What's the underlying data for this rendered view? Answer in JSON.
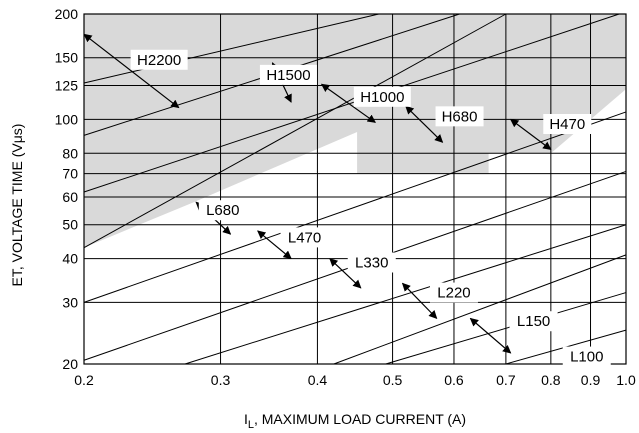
{
  "chart_data": {
    "type": "line",
    "x_scale": "log",
    "y_scale": "log",
    "xlim": [
      0.2,
      1.0
    ],
    "ylim": [
      20,
      200
    ],
    "xlabel_main": "I",
    "xlabel_sub": "L",
    "xlabel_rest": ", MAXIMUM LOAD CURRENT (A)",
    "ylabel": "ET, VOLTAGE TIME (Vμs)",
    "x_ticks": [
      {
        "value": 0.2,
        "label": "0.2"
      },
      {
        "value": 0.3,
        "label": "0.3"
      },
      {
        "value": 0.4,
        "label": "0.4"
      },
      {
        "value": 0.5,
        "label": "0.5"
      },
      {
        "value": 0.6,
        "label": "0.6"
      },
      {
        "value": 0.7,
        "label": "0.7"
      },
      {
        "value": 0.8,
        "label": "0.8"
      },
      {
        "value": 0.9,
        "label": "0.9"
      },
      {
        "value": 1.0,
        "label": "1.0"
      }
    ],
    "y_ticks": [
      {
        "value": 20,
        "label": "20"
      },
      {
        "value": 30,
        "label": "30"
      },
      {
        "value": 40,
        "label": "40"
      },
      {
        "value": 50,
        "label": "50"
      },
      {
        "value": 60,
        "label": "60"
      },
      {
        "value": 70,
        "label": "70"
      },
      {
        "value": 80,
        "label": "80"
      },
      {
        "value": 100,
        "label": "100"
      },
      {
        "value": 125,
        "label": "125"
      },
      {
        "value": 150,
        "label": "150"
      },
      {
        "value": 200,
        "label": "200"
      }
    ],
    "shaded_color": "#d9d9d9",
    "shaded_region": [
      [
        0.2,
        200
      ],
      [
        1.0,
        200
      ],
      [
        1.0,
        122
      ],
      [
        0.8,
        80
      ],
      [
        0.665,
        80
      ],
      [
        0.665,
        70
      ],
      [
        0.45,
        70
      ],
      [
        0.45,
        92
      ],
      [
        0.277,
        58
      ],
      [
        0.2,
        43
      ]
    ],
    "boundary_lines": [
      {
        "x": [
          0.2,
          0.7
        ],
        "y": [
          43,
          200
        ]
      },
      {
        "x": [
          0.2,
          0.98
        ],
        "y": [
          62,
          200
        ]
      },
      {
        "x": [
          0.2,
          0.61
        ],
        "y": [
          90,
          200
        ]
      },
      {
        "x": [
          0.2,
          0.48
        ],
        "y": [
          127,
          200
        ]
      },
      {
        "x": [
          0.2,
          1.0
        ],
        "y": [
          30,
          105
        ]
      },
      {
        "x": [
          0.2,
          1.0
        ],
        "y": [
          20.5,
          71
        ]
      },
      {
        "x": [
          0.27,
          1.0
        ],
        "y": [
          20,
          50
        ]
      },
      {
        "x": [
          0.42,
          1.0
        ],
        "y": [
          20,
          41
        ]
      },
      {
        "x": [
          0.49,
          1.0
        ],
        "y": [
          20,
          32
        ]
      },
      {
        "x": [
          0.7,
          1.0
        ],
        "y": [
          20,
          25
        ]
      }
    ],
    "regions": [
      {
        "name": "H2200",
        "x": 0.25,
        "y": 148,
        "arrow": [
          [
            0.2,
            175
          ],
          [
            0.265,
            108
          ]
        ]
      },
      {
        "name": "H1500",
        "x": 0.367,
        "y": 134,
        "arrow": [
          [
            0.35,
            145
          ],
          [
            0.37,
            112
          ]
        ]
      },
      {
        "name": "H1000",
        "x": 0.485,
        "y": 116,
        "arrow": [
          [
            0.405,
            126
          ],
          [
            0.475,
            98
          ]
        ]
      },
      {
        "name": "H680",
        "x": 0.61,
        "y": 102,
        "arrow": [
          [
            0.52,
            109
          ],
          [
            0.58,
            86
          ]
        ]
      },
      {
        "name": "H470",
        "x": 0.84,
        "y": 97,
        "arrow": [
          [
            0.71,
            100
          ],
          [
            0.8,
            82
          ]
        ]
      },
      {
        "name": "L680",
        "x": 0.302,
        "y": 55,
        "arrow": [
          [
            0.279,
            58
          ],
          [
            0.309,
            47
          ]
        ]
      },
      {
        "name": "L470",
        "x": 0.385,
        "y": 46,
        "arrow": [
          [
            0.335,
            48
          ],
          [
            0.37,
            40
          ]
        ]
      },
      {
        "name": "L330",
        "x": 0.47,
        "y": 39,
        "arrow": [
          [
            0.415,
            40
          ],
          [
            0.455,
            33
          ]
        ]
      },
      {
        "name": "L220",
        "x": 0.6,
        "y": 32,
        "arrow": [
          [
            0.515,
            34
          ],
          [
            0.57,
            27
          ]
        ]
      },
      {
        "name": "L150",
        "x": 0.76,
        "y": 26.5,
        "arrow": [
          [
            0.63,
            27
          ],
          [
            0.71,
            21.5
          ]
        ]
      },
      {
        "name": "L100",
        "x": 0.89,
        "y": 21,
        "arrow": null
      }
    ]
  }
}
